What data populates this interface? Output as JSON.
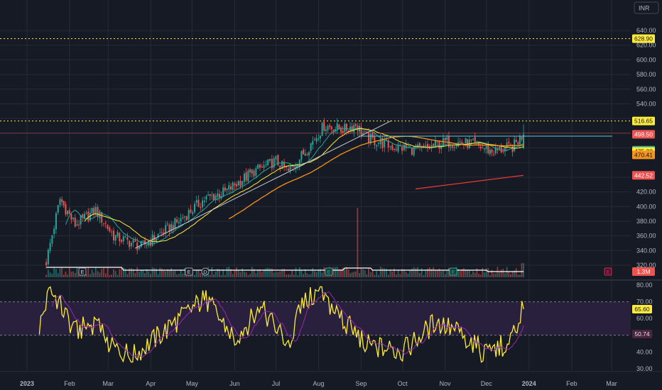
{
  "currency_button": "INR",
  "colors": {
    "background": "#161a25",
    "grid": "#262b38",
    "up": "#26a69a",
    "down": "#ef5350",
    "volume_line": "#ffffff",
    "ma_short": "#26a69a",
    "ma_mid": "#ffeb3b",
    "ma_long": "#f7931a",
    "ma_200": "#e53935",
    "rsi_line": "#ffeb3b",
    "rsi_ma": "#9c27b0",
    "rsi_band": "#2a2140",
    "dotted_level": "#ffeb3b",
    "horizontal_ray": "#4dd0e1",
    "trendline": "#c7c9d1"
  },
  "price_axis": {
    "ticks": [
      "640.00",
      "620.00",
      "600.00",
      "580.00",
      "560.00",
      "540.00",
      "420.00",
      "400.00",
      "380.00",
      "360.00",
      "340.00",
      "320.00"
    ],
    "range": [
      310,
      660
    ],
    "badges": [
      {
        "label": "628.90",
        "value": 628.9,
        "bg": "#ffeb3b",
        "fg": "#131722"
      },
      {
        "label": "516.65",
        "value": 516.65,
        "bg": "#ffeb3b",
        "fg": "#131722"
      },
      {
        "label": "498.50",
        "value": 498.5,
        "bg": "#ef5350",
        "fg": "#ffffff"
      },
      {
        "label": "476.84",
        "value": 476.84,
        "bg": "#26a69a",
        "fg": "#131722"
      },
      {
        "label": "475.22",
        "value": 475.22,
        "bg": "#ffeb3b",
        "fg": "#131722"
      },
      {
        "label": "470.41",
        "value": 470.41,
        "bg": "#f7931a",
        "fg": "#131722"
      },
      {
        "label": "442.52",
        "value": 442.52,
        "bg": "#ef5350",
        "fg": "#ffffff"
      },
      {
        "label": "1.3M",
        "value": 312,
        "bg": "#ef5350",
        "fg": "#ffffff"
      }
    ],
    "dotted_levels": [
      628.9,
      516.65
    ],
    "horizontal_ray_value": 496,
    "red_line_value": 500
  },
  "rsi_axis": {
    "ticks": [
      "80.00",
      "70.00",
      "60.00",
      "50.00",
      "40.00",
      "30.00"
    ],
    "range": [
      30,
      80
    ],
    "band": [
      50,
      70
    ],
    "badges": [
      {
        "label": "65.60",
        "value": 65.6,
        "bg": "#ffeb3b",
        "fg": "#131722"
      },
      {
        "label": "50.74",
        "value": 50.74,
        "bg": "#4a2540",
        "fg": "#e0e0e0"
      }
    ]
  },
  "time_axis": {
    "labels": [
      "2023",
      "Feb",
      "Mar",
      "Apr",
      "May",
      "Jun",
      "Jul",
      "Aug",
      "Sep",
      "Oct",
      "Nov",
      "Dec",
      "2024",
      "Feb",
      "Mar"
    ]
  },
  "event_markers": [
    {
      "label": "E",
      "style": "grey"
    },
    {
      "label": "E",
      "style": "grey"
    },
    {
      "label": "D",
      "style": "grey"
    },
    {
      "label": "E",
      "style": "green"
    },
    {
      "label": "E",
      "style": "green"
    },
    {
      "label": "E",
      "style": "red"
    }
  ],
  "chart_data": [
    {
      "type": "candlestick",
      "title": "",
      "xlabel": "",
      "ylabel": "",
      "x_range": [
        "2023-01-01",
        "2024-03-15"
      ],
      "ylim": [
        310,
        660
      ],
      "grid": true,
      "key_points": [
        {
          "date": "2023-01-15",
          "close": 325
        },
        {
          "date": "2023-01-25",
          "close": 410
        },
        {
          "date": "2023-02-05",
          "close": 375
        },
        {
          "date": "2023-02-20",
          "close": 395
        },
        {
          "date": "2023-03-05",
          "close": 360
        },
        {
          "date": "2023-03-25",
          "close": 345
        },
        {
          "date": "2023-04-20",
          "close": 378
        },
        {
          "date": "2023-05-10",
          "close": 410
        },
        {
          "date": "2023-05-25",
          "close": 420
        },
        {
          "date": "2023-06-15",
          "close": 448
        },
        {
          "date": "2023-07-01",
          "close": 462
        },
        {
          "date": "2023-07-10",
          "close": 447
        },
        {
          "date": "2023-07-25",
          "close": 482
        },
        {
          "date": "2023-08-05",
          "close": 510
        },
        {
          "date": "2023-08-20",
          "close": 505
        },
        {
          "date": "2023-08-28",
          "close": 512
        },
        {
          "date": "2023-09-05",
          "close": 493
        },
        {
          "date": "2023-09-25",
          "close": 481
        },
        {
          "date": "2023-10-15",
          "close": 477
        },
        {
          "date": "2023-11-01",
          "close": 488
        },
        {
          "date": "2023-11-20",
          "close": 486
        },
        {
          "date": "2023-12-05",
          "close": 475
        },
        {
          "date": "2023-12-20",
          "close": 481
        },
        {
          "date": "2023-12-28",
          "close": 498.5
        }
      ],
      "moving_averages": [
        {
          "label": "476.84",
          "last": 476.84
        },
        {
          "label": "475.22",
          "last": 475.22
        },
        {
          "label": "470.41",
          "last": 470.41
        },
        {
          "label": "442.52",
          "last": 442.52
        }
      ],
      "volume_spike_date": "2023-08-29"
    },
    {
      "type": "line",
      "title": "",
      "ylim": [
        30,
        80
      ],
      "band": [
        50,
        70
      ],
      "points": [
        {
          "date": "2023-01-10",
          "value": 55
        },
        {
          "date": "2023-01-18",
          "value": 78
        },
        {
          "date": "2023-02-05",
          "value": 52
        },
        {
          "date": "2023-02-20",
          "value": 58
        },
        {
          "date": "2023-03-05",
          "value": 42
        },
        {
          "date": "2023-03-20",
          "value": 38
        },
        {
          "date": "2023-04-15",
          "value": 55
        },
        {
          "date": "2023-05-10",
          "value": 72
        },
        {
          "date": "2023-06-01",
          "value": 48
        },
        {
          "date": "2023-06-20",
          "value": 66
        },
        {
          "date": "2023-07-10",
          "value": 45
        },
        {
          "date": "2023-07-20",
          "value": 68
        },
        {
          "date": "2023-08-01",
          "value": 76
        },
        {
          "date": "2023-08-20",
          "value": 58
        },
        {
          "date": "2023-09-05",
          "value": 44
        },
        {
          "date": "2023-10-01",
          "value": 40
        },
        {
          "date": "2023-10-25",
          "value": 58
        },
        {
          "date": "2023-11-15",
          "value": 50
        },
        {
          "date": "2023-12-01",
          "value": 38
        },
        {
          "date": "2023-12-15",
          "value": 45
        },
        {
          "date": "2023-12-28",
          "value": 65.6
        }
      ],
      "ma_last": 50.74
    }
  ]
}
